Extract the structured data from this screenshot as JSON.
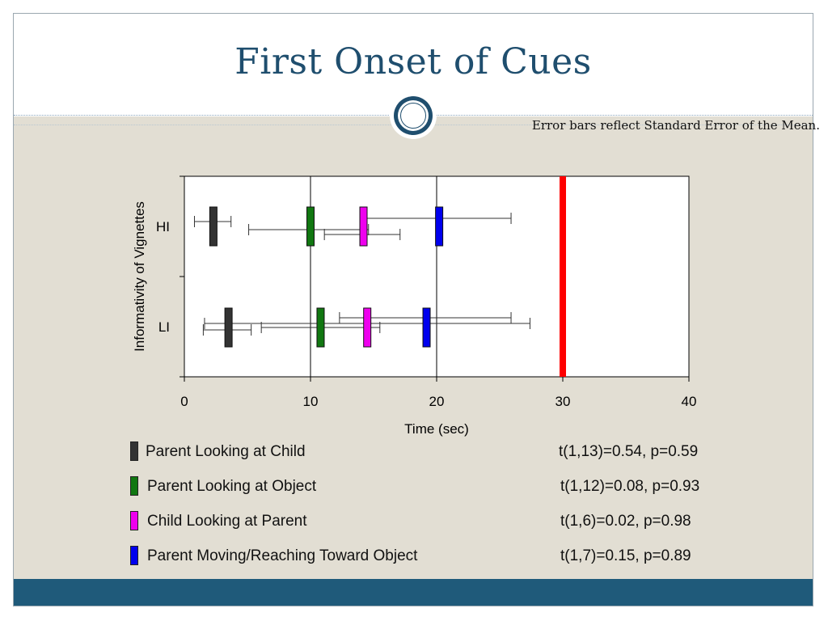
{
  "slide": {
    "title": "First Onset of Cues",
    "note": "Error bars reflect Standard Error of the Mean.",
    "colors": {
      "title": "#1f4e6e",
      "footer": "#1f5a7a",
      "background": "#e2ded3",
      "threshold": "#ff0000"
    }
  },
  "chart_data": {
    "type": "bar",
    "orientation": "horizontal",
    "title": "",
    "xlabel": "Time (sec)",
    "ylabel": "Informativity of Vignettes",
    "xlim": [
      0,
      40
    ],
    "xticks": [
      "0",
      "10",
      "20",
      "30",
      "40"
    ],
    "vertical_gridlines_at": [
      10,
      20
    ],
    "categories": [
      "HI",
      "LI"
    ],
    "reference_line": {
      "x": 30,
      "color": "#ff0000"
    },
    "series": [
      {
        "name": "Parent Looking at Child",
        "color": "#333333",
        "means": [
          2.3,
          3.5
        ],
        "error_low": [
          0.8,
          1.5
        ],
        "error_high": [
          3.7,
          5.3
        ],
        "stat": "t(1,13)=0.54, p=0.59"
      },
      {
        "name": "Parent Looking at Object",
        "color": "#117711",
        "means": [
          10.0,
          10.8
        ],
        "error_low": [
          5.1,
          1.6
        ],
        "error_high": [
          14.6,
          27.4
        ],
        "stat": "t(1,12)=0.08, p=0.93"
      },
      {
        "name": "Child Looking at Parent",
        "color": "#ee00ee",
        "means": [
          14.2,
          14.5
        ],
        "error_low": [
          11.1,
          6.1
        ],
        "error_high": [
          17.1,
          15.5
        ],
        "stat": "t(1,6)=0.02, p=0.98"
      },
      {
        "name": "Parent Moving/Reaching Toward Object",
        "color": "#0000ee",
        "means": [
          20.2,
          19.2
        ],
        "error_low": [
          14.4,
          12.3
        ],
        "error_high": [
          25.9,
          25.9
        ],
        "stat": "t(1,7)=0.15, p=0.89"
      }
    ]
  }
}
